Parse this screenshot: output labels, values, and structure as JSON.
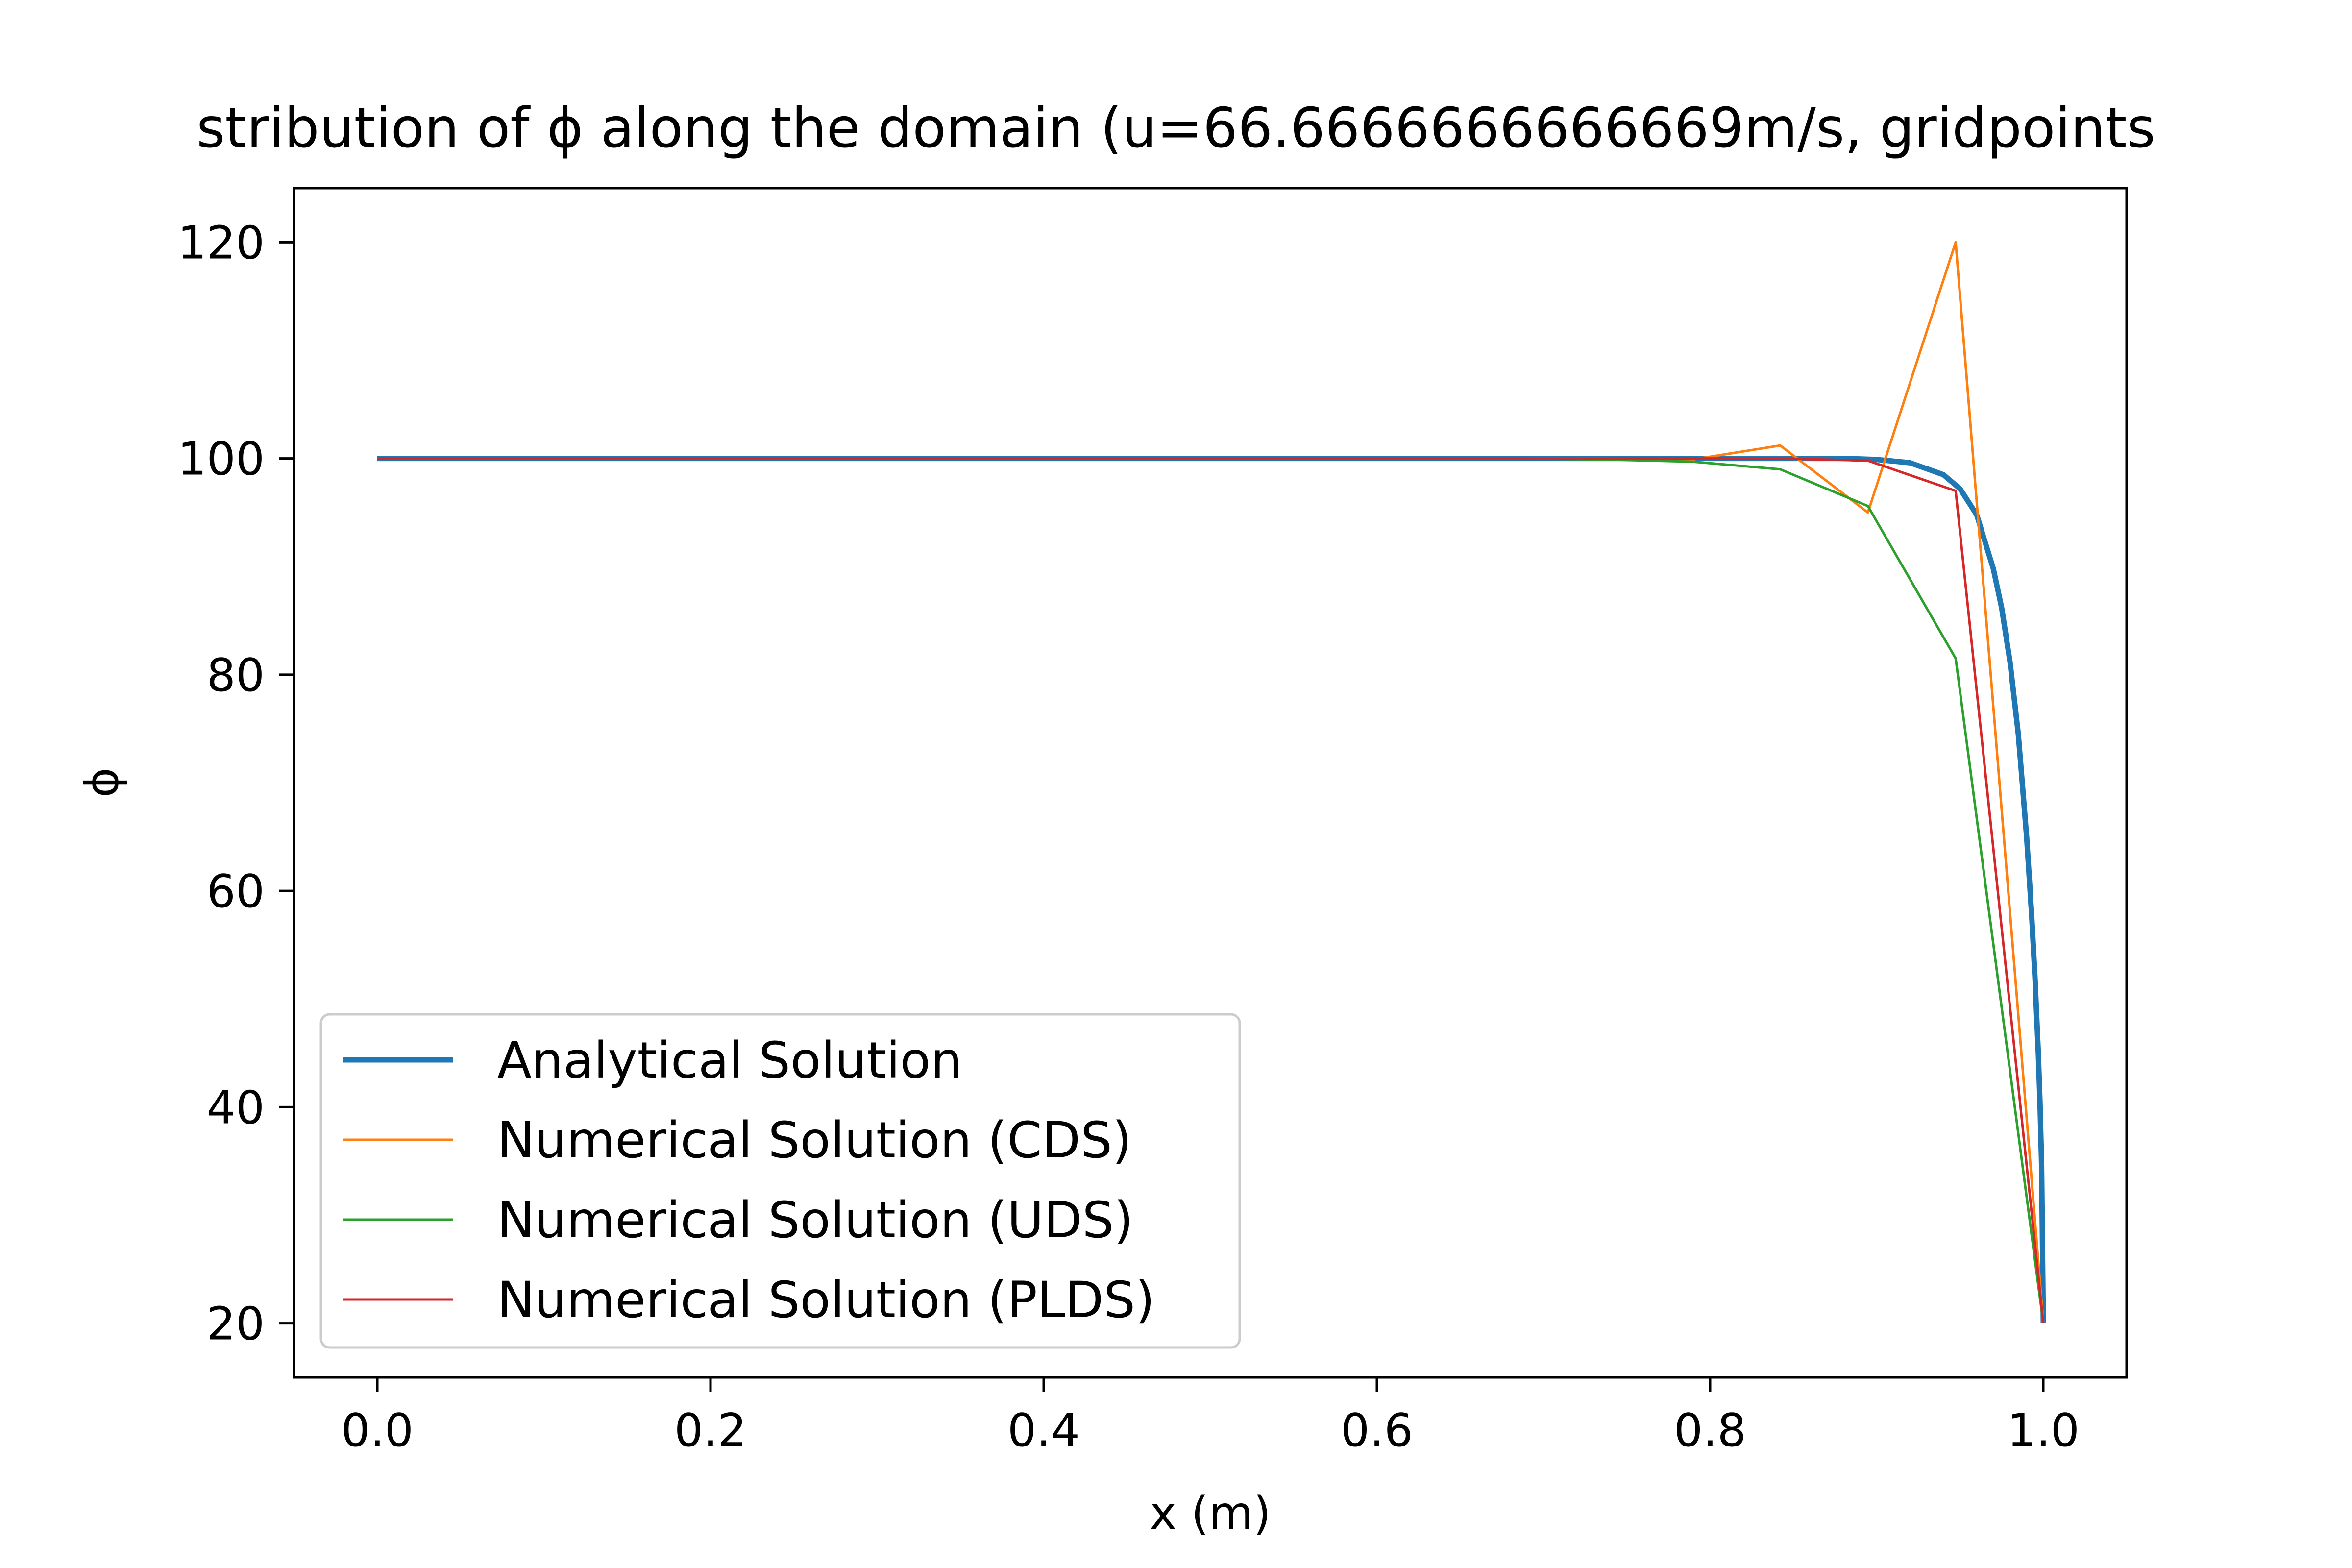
{
  "chart_data": {
    "type": "line",
    "title": "stribution of ϕ along the domain (u=66.6666666666669m/s, gridpoints",
    "xlabel": "x (m)",
    "ylabel": "ϕ",
    "xlim": [
      -0.05,
      1.05
    ],
    "ylim": [
      15,
      125
    ],
    "xticks": [
      0.0,
      0.2,
      0.4,
      0.6,
      0.8,
      1.0
    ],
    "xtick_labels": [
      "0.0",
      "0.2",
      "0.4",
      "0.6",
      "0.8",
      "1.0"
    ],
    "yticks": [
      20,
      40,
      60,
      80,
      100,
      120
    ],
    "ytick_labels": [
      "20",
      "40",
      "60",
      "80",
      "100",
      "120"
    ],
    "grid": false,
    "legend_position": "lower-left",
    "series": [
      {
        "name": "Analytical Solution",
        "color": "#1f77b4",
        "x": [
          0.0,
          0.1,
          0.2,
          0.3,
          0.4,
          0.5,
          0.6,
          0.7,
          0.8,
          0.85,
          0.88,
          0.9,
          0.92,
          0.94,
          0.95,
          0.96,
          0.97,
          0.975,
          0.98,
          0.985,
          0.99,
          0.993,
          0.995,
          0.997,
          0.998,
          0.999,
          1.0
        ],
        "values": [
          100,
          100,
          100,
          100,
          100,
          100,
          100,
          100,
          100,
          100,
          100,
          99.9,
          99.6,
          98.5,
          97.2,
          94.8,
          89.8,
          86.2,
          81.2,
          74.5,
          65.0,
          57.8,
          52.0,
          45.0,
          40.5,
          34.5,
          20
        ]
      },
      {
        "name": "Numerical Solution (CDS)",
        "color": "#ff7f0e",
        "x": [
          0.0,
          0.0526,
          0.1053,
          0.1579,
          0.2105,
          0.2632,
          0.3158,
          0.3684,
          0.4211,
          0.4737,
          0.5263,
          0.5789,
          0.6316,
          0.6842,
          0.7368,
          0.7895,
          0.8421,
          0.8947,
          0.9474,
          1.0
        ],
        "values": [
          100,
          100,
          100,
          100,
          100,
          100,
          100,
          100,
          100,
          100,
          100,
          100,
          100,
          100,
          100,
          99.9,
          101.2,
          95.0,
          120.0,
          20
        ]
      },
      {
        "name": "Numerical Solution (UDS)",
        "color": "#2ca02c",
        "x": [
          0.0,
          0.0526,
          0.1053,
          0.1579,
          0.2105,
          0.2632,
          0.3158,
          0.3684,
          0.4211,
          0.4737,
          0.5263,
          0.5789,
          0.6316,
          0.6842,
          0.7368,
          0.7895,
          0.8421,
          0.8947,
          0.9474,
          1.0
        ],
        "values": [
          100,
          100,
          100,
          100,
          100,
          100,
          100,
          100,
          100,
          100,
          100,
          100,
          100,
          100,
          99.9,
          99.7,
          99.0,
          95.6,
          81.5,
          20
        ]
      },
      {
        "name": "Numerical Solution (PLDS)",
        "color": "#d62728",
        "x": [
          0.0,
          0.0526,
          0.1053,
          0.1579,
          0.2105,
          0.2632,
          0.3158,
          0.3684,
          0.4211,
          0.4737,
          0.5263,
          0.5789,
          0.6316,
          0.6842,
          0.7368,
          0.7895,
          0.8421,
          0.8947,
          0.9474,
          1.0
        ],
        "values": [
          100,
          100,
          100,
          100,
          100,
          100,
          100,
          100,
          100,
          100,
          100,
          100,
          100,
          100,
          100,
          100,
          100,
          99.8,
          97.0,
          20
        ]
      }
    ]
  }
}
